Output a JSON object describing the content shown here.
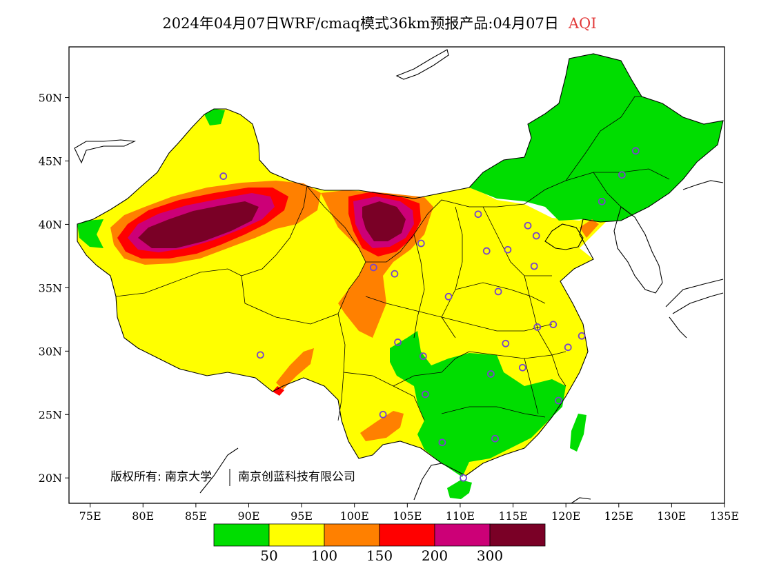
{
  "title": {
    "main": "2024年04月07日WRF/cmaq模式36km预报产品:04月07日",
    "variable": "AQI"
  },
  "colors": {
    "good": "#00dd00",
    "moderate": "#ffff00",
    "sensitive": "#ff8000",
    "unhealthy": "#ff0000",
    "very_unhealthy": "#cc0077",
    "hazardous": "#7a0026",
    "station": "#7744cc"
  },
  "axes": {
    "x_ticks": [
      "75E",
      "80E",
      "85E",
      "90E",
      "95E",
      "100E",
      "105E",
      "110E",
      "115E",
      "120E",
      "125E",
      "130E",
      "135E"
    ],
    "y_ticks": [
      "50N",
      "45N",
      "40N",
      "35N",
      "30N",
      "25N",
      "20N"
    ],
    "lon_range": [
      73,
      135
    ],
    "lat_range": [
      18,
      54
    ]
  },
  "legend": {
    "bins": [
      "0-50",
      "50-100",
      "100-150",
      "150-200",
      "200-300",
      ">300"
    ],
    "labels": [
      "50",
      "100",
      "150",
      "200",
      "300"
    ]
  },
  "copyright": {
    "text": "版权所有: 南京大学",
    "text2": "南京创蓝科技有限公司"
  },
  "stations": [
    [
      87.6,
      43.8
    ],
    [
      91.1,
      29.7
    ],
    [
      101.8,
      36.6
    ],
    [
      103.8,
      36.1
    ],
    [
      106.3,
      38.5
    ],
    [
      111.7,
      40.8
    ],
    [
      112.5,
      37.9
    ],
    [
      114.5,
      38.0
    ],
    [
      116.4,
      39.9
    ],
    [
      117.2,
      39.1
    ],
    [
      117.0,
      36.7
    ],
    [
      113.6,
      34.7
    ],
    [
      108.9,
      34.3
    ],
    [
      104.1,
      30.7
    ],
    [
      106.5,
      29.6
    ],
    [
      106.7,
      26.6
    ],
    [
      102.7,
      25.0
    ],
    [
      108.3,
      22.8
    ],
    [
      113.3,
      23.1
    ],
    [
      110.3,
      20.0
    ],
    [
      112.9,
      28.2
    ],
    [
      114.3,
      30.6
    ],
    [
      115.9,
      28.7
    ],
    [
      117.3,
      31.9
    ],
    [
      118.8,
      32.1
    ],
    [
      120.2,
      30.3
    ],
    [
      121.5,
      31.2
    ],
    [
      119.3,
      26.1
    ],
    [
      123.4,
      41.8
    ],
    [
      125.3,
      43.9
    ],
    [
      126.6,
      45.8
    ]
  ]
}
